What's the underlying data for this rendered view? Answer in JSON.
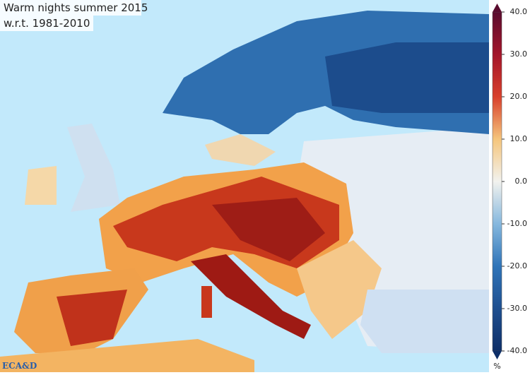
{
  "map": {
    "title": "Warm nights summer 2015",
    "subtitle": "w.r.t. 1981-2010",
    "logo": "ECA&D"
  },
  "colorbar": {
    "lim": [
      -40,
      40
    ],
    "ticks": [
      {
        "value": 40,
        "label": "40.0"
      },
      {
        "value": 30,
        "label": "30.0"
      },
      {
        "value": 20,
        "label": "20.0"
      },
      {
        "value": 10,
        "label": "10.0"
      },
      {
        "value": 0,
        "label": "0.0"
      },
      {
        "value": -10,
        "label": "-10.0"
      },
      {
        "value": -20,
        "label": "-20.0"
      },
      {
        "value": -30,
        "label": "-30.0"
      },
      {
        "value": -40,
        "label": "-40.0"
      }
    ],
    "unit": "%",
    "colors": [
      "#5a0c2e",
      "#a3152a",
      "#d8402c",
      "#f5c57c",
      "#f2f2ee",
      "#86b8de",
      "#2f74b8",
      "#1e4f8f",
      "#0e2f68"
    ]
  }
}
